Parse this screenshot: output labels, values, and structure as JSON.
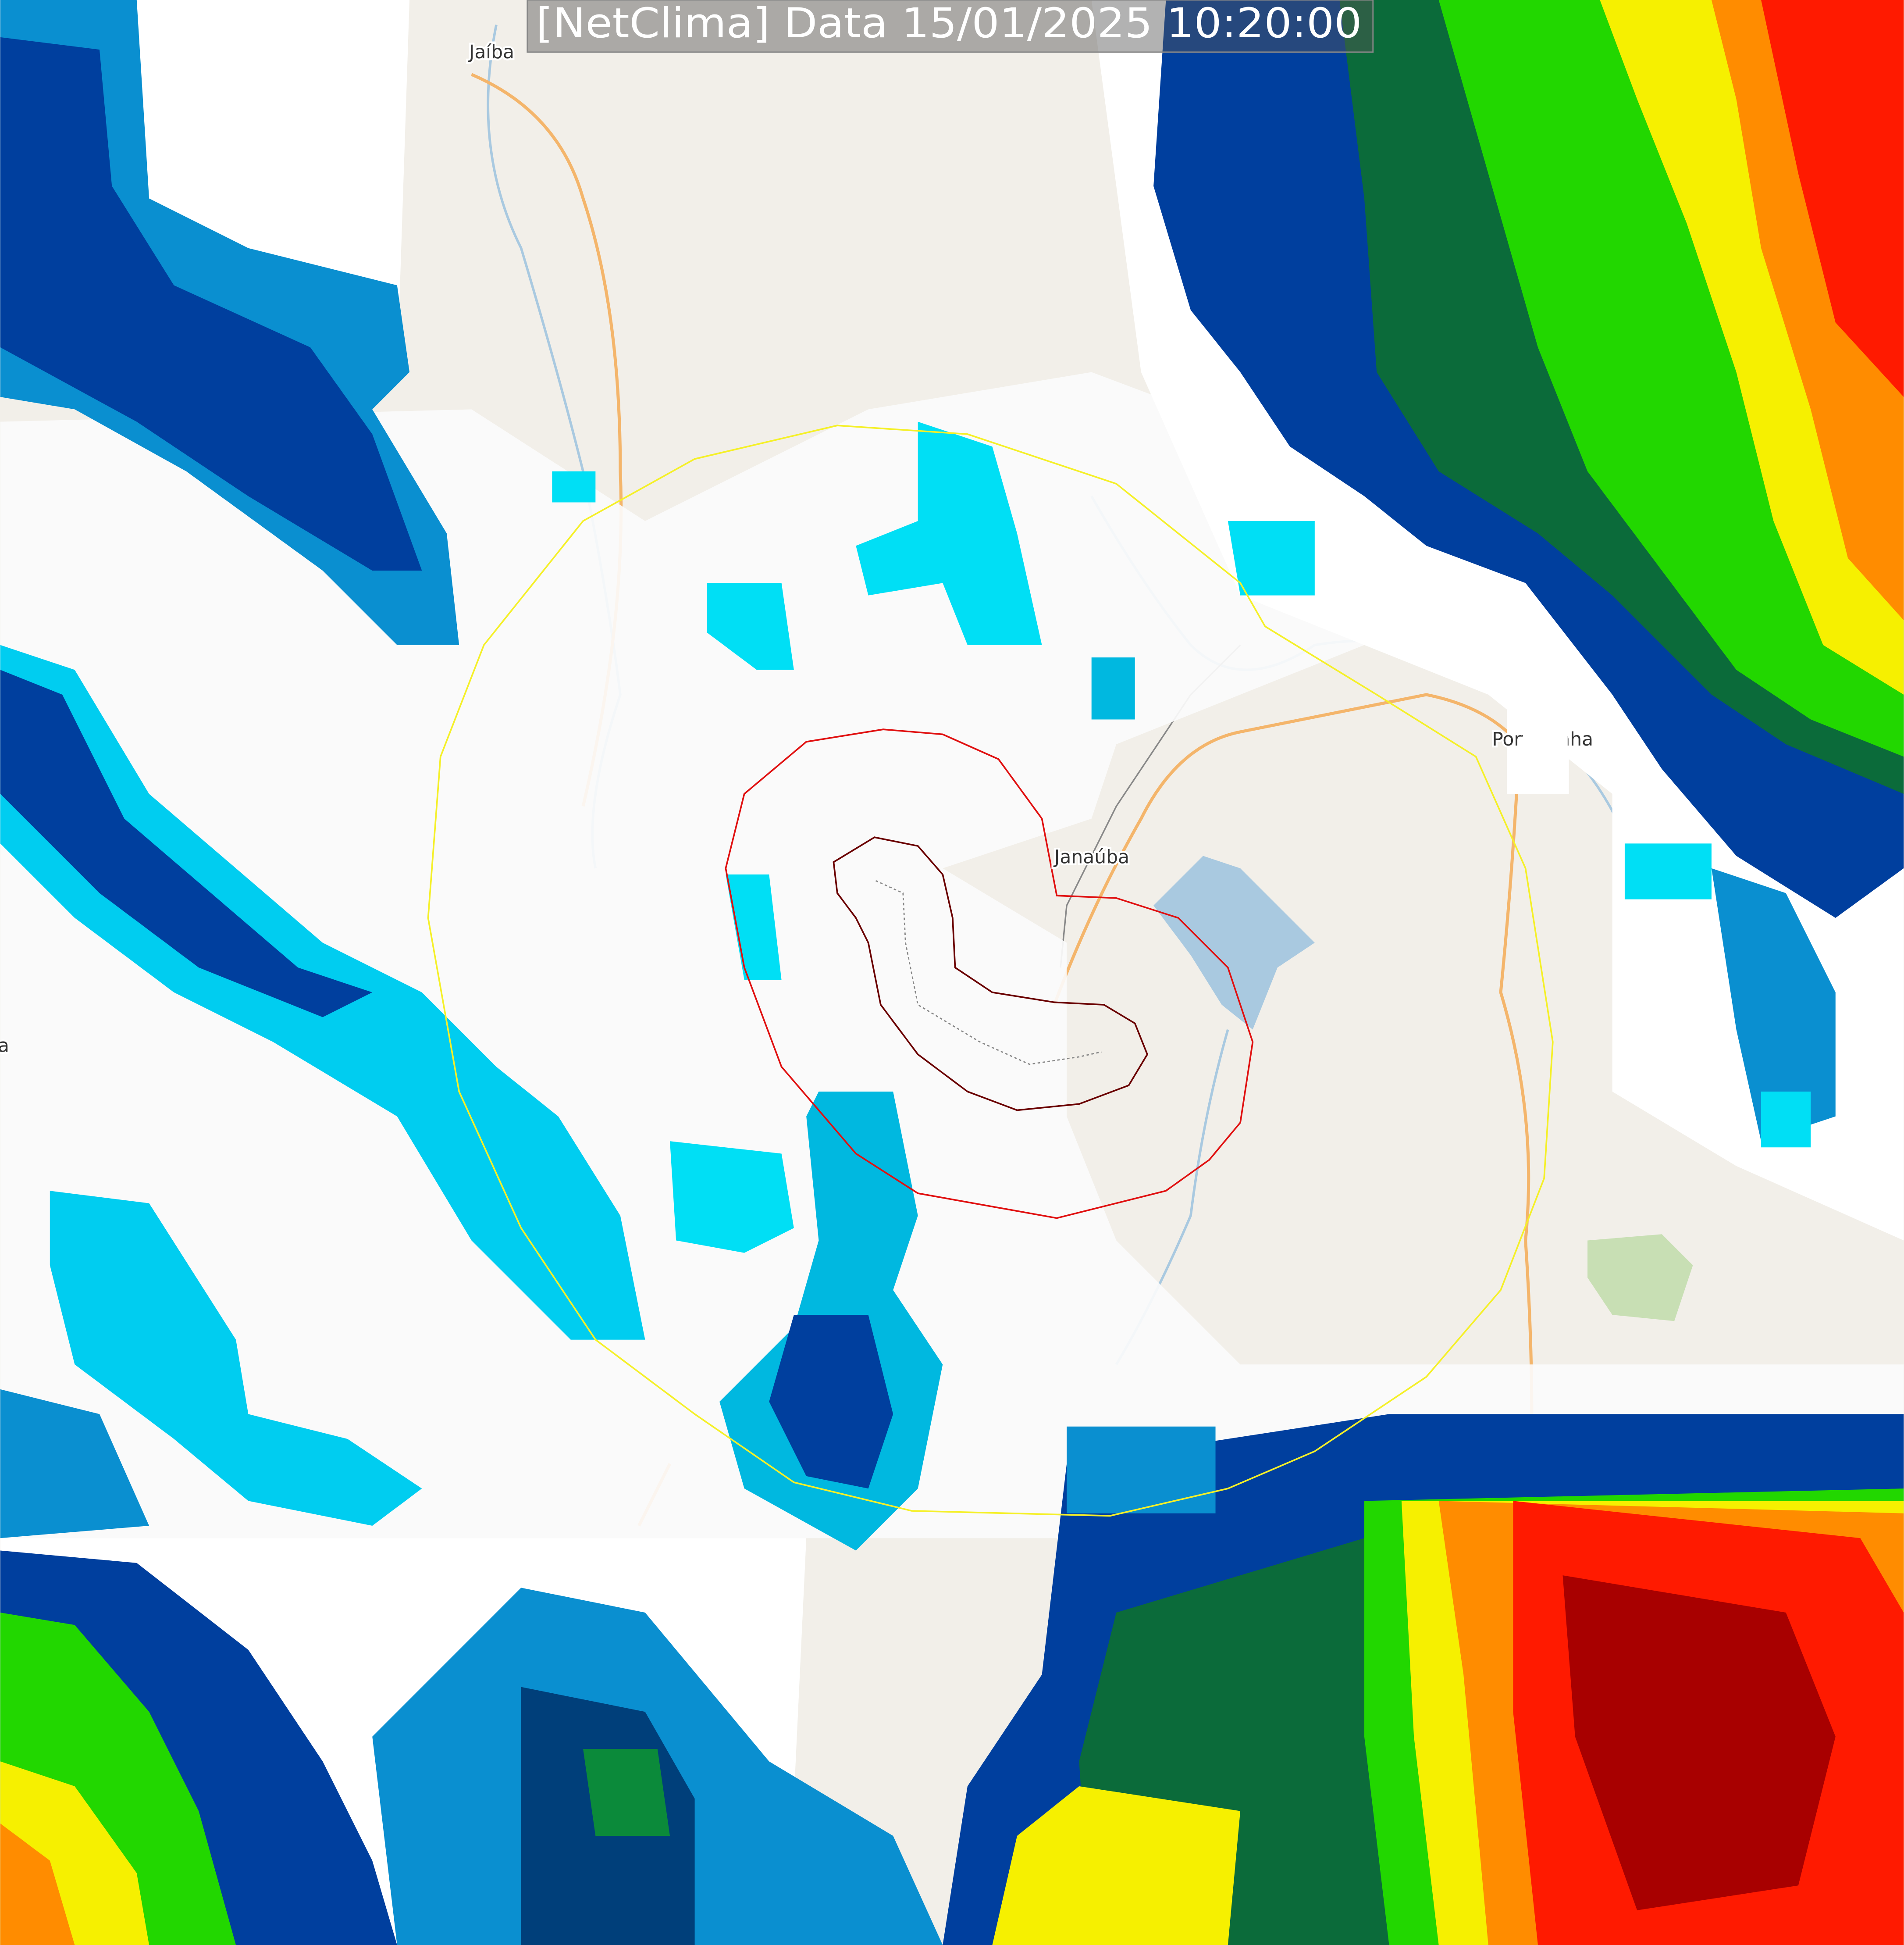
{
  "header": {
    "title": "[NetClima] Data 15/01/2025 10:20:00"
  },
  "places": [
    {
      "label": "Jaíba"
    },
    {
      "label": "Janaúba"
    },
    {
      "label": "Porteirinha"
    },
    {
      "label": "a"
    }
  ]
}
